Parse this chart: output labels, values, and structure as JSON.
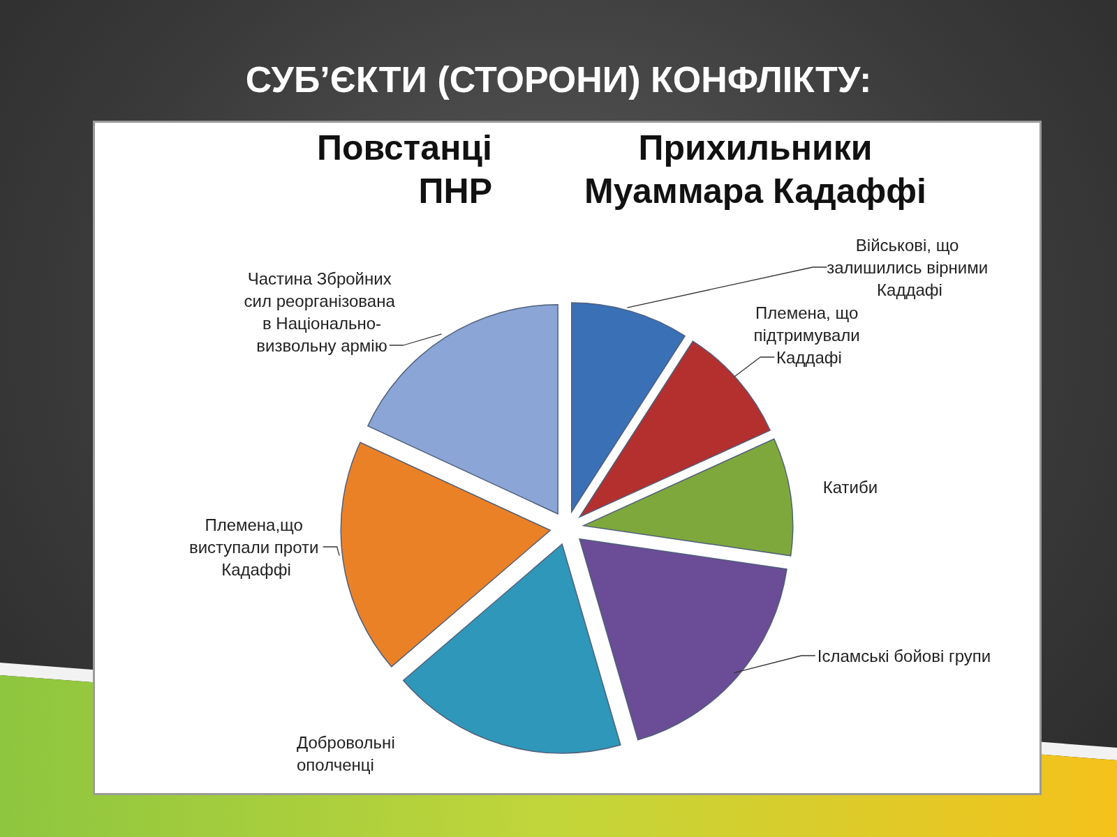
{
  "chart_data": {
    "type": "pie",
    "title": "СУБ’ЄКТИ (СТОРОНИ) КОНФЛІКТУ:",
    "annotations": [
      "Повстанці ПНР",
      "Прихильники Муаммара Кадаффі"
    ],
    "categories": [
      "Військові, що залишились вірними Каддафі",
      "Племена, що підтримували Каддафі",
      "Катиби",
      "Ісламські бойові групи",
      "Добровольні ополченці",
      "Племена,що виступали проти Кадаффі",
      "Частина Збройних сил реорганізована в Національно-визвольну армію"
    ],
    "values": [
      9.1,
      9.1,
      9.1,
      18.2,
      18.2,
      18.2,
      18.1
    ],
    "colors": [
      "#3a70b6",
      "#b3302f",
      "#7fa83c",
      "#6b4c96",
      "#2f97b9",
      "#eb8127",
      "#8aa5d6"
    ]
  }
}
